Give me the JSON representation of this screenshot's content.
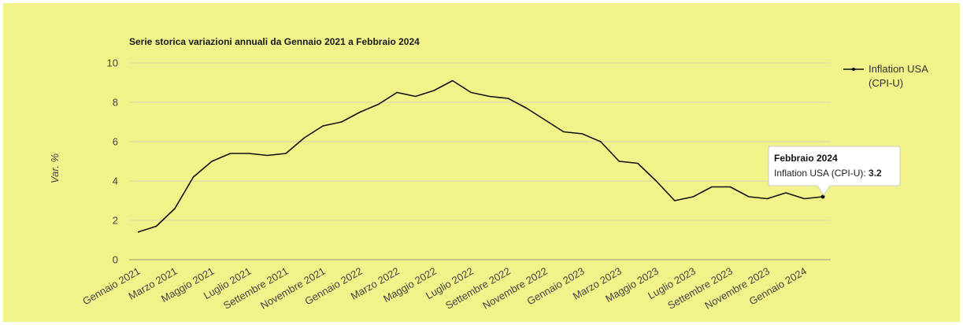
{
  "colors": {
    "background": "#f2f28a",
    "line": "#111111",
    "grid": "#d6d6ae",
    "tooltip_bg": "#ffffff"
  },
  "chart_data": {
    "type": "line",
    "title": "Serie storica variazioni annuali da Gennaio 2021 a Febbraio 2024",
    "xlabel": "",
    "ylabel": "Var. %",
    "ylim": [
      0,
      10
    ],
    "yticks": [
      0,
      2,
      4,
      6,
      8,
      10
    ],
    "grid": true,
    "legend_position": "top-right",
    "x": [
      "Gennaio 2021",
      "Febbraio 2021",
      "Marzo 2021",
      "Aprile 2021",
      "Maggio 2021",
      "Giugno 2021",
      "Luglio 2021",
      "Agosto 2021",
      "Settembre 2021",
      "Ottobre 2021",
      "Novembre 2021",
      "Dicembre 2021",
      "Gennaio 2022",
      "Febbraio 2022",
      "Marzo 2022",
      "Aprile 2022",
      "Maggio 2022",
      "Giugno 2022",
      "Luglio 2022",
      "Agosto 2022",
      "Settembre 2022",
      "Ottobre 2022",
      "Novembre 2022",
      "Dicembre 2022",
      "Gennaio 2023",
      "Febbraio 2023",
      "Marzo 2023",
      "Aprile 2023",
      "Maggio 2023",
      "Giugno 2023",
      "Luglio 2023",
      "Agosto 2023",
      "Settembre 2023",
      "Ottobre 2023",
      "Novembre 2023",
      "Dicembre 2023",
      "Gennaio 2024",
      "Febbraio 2024"
    ],
    "x_tick_labels": [
      "Gennaio 2021",
      "Marzo 2021",
      "Maggio 2021",
      "Luglio 2021",
      "Settembre 2021",
      "Novembre 2021",
      "Gennaio 2022",
      "Marzo 2022",
      "Maggio 2022",
      "Luglio 2022",
      "Settembre 2022",
      "Novembre 2022",
      "Gennaio 2023",
      "Marzo 2023",
      "Maggio 2023",
      "Luglio 2023",
      "Settembre 2023",
      "Novembre 2023",
      "Gennaio 2024"
    ],
    "series": [
      {
        "name": "Inflation USA (CPI-U)",
        "legend_lines": [
          "Inflation USA",
          "(CPI-U)"
        ],
        "values": [
          1.4,
          1.7,
          2.6,
          4.2,
          5.0,
          5.4,
          5.4,
          5.3,
          5.4,
          6.2,
          6.8,
          7.0,
          7.5,
          7.9,
          8.5,
          8.3,
          8.6,
          9.1,
          8.5,
          8.3,
          8.2,
          7.7,
          7.1,
          6.5,
          6.4,
          6.0,
          5.0,
          4.9,
          4.0,
          3.0,
          3.2,
          3.7,
          3.7,
          3.2,
          3.1,
          3.4,
          3.1,
          3.2
        ]
      }
    ],
    "tooltip": {
      "title": "Febbraio 2024",
      "label": "Inflation USA (CPI-U): ",
      "value": "3.2"
    }
  }
}
